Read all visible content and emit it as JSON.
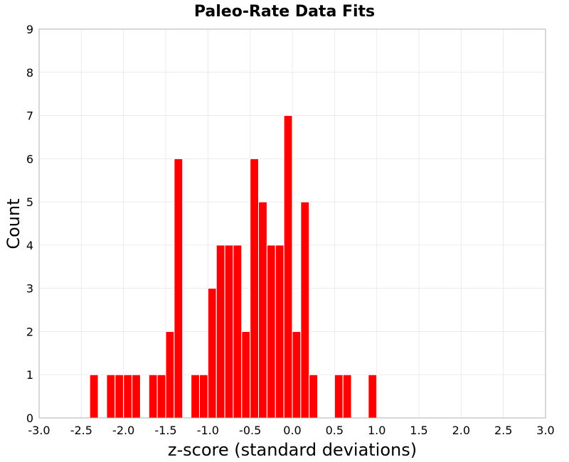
{
  "chart_data": {
    "type": "bar",
    "title": "Paleo-Rate Data Fits",
    "xlabel": "z-score (standard deviations)",
    "ylabel": "Count",
    "xlim": [
      -3.0,
      3.0
    ],
    "ylim": [
      0,
      9
    ],
    "bin_width": 0.1,
    "bar_color": "#ff0000",
    "grid": true,
    "x_ticks": [
      "-3.0",
      "-2.5",
      "-2.0",
      "-1.5",
      "-1.0",
      "-0.5",
      "0.0",
      "0.5",
      "1.0",
      "1.5",
      "2.0",
      "2.5",
      "3.0"
    ],
    "y_ticks": [
      "0",
      "1",
      "2",
      "3",
      "4",
      "5",
      "6",
      "7",
      "8",
      "9"
    ],
    "bins": [
      {
        "x": -2.35,
        "count": 1
      },
      {
        "x": -2.15,
        "count": 1
      },
      {
        "x": -2.05,
        "count": 1
      },
      {
        "x": -1.95,
        "count": 1
      },
      {
        "x": -1.85,
        "count": 1
      },
      {
        "x": -1.65,
        "count": 1
      },
      {
        "x": -1.55,
        "count": 1
      },
      {
        "x": -1.45,
        "count": 2
      },
      {
        "x": -1.35,
        "count": 6
      },
      {
        "x": -1.15,
        "count": 1
      },
      {
        "x": -1.05,
        "count": 1
      },
      {
        "x": -0.95,
        "count": 3
      },
      {
        "x": -0.85,
        "count": 4
      },
      {
        "x": -0.75,
        "count": 4
      },
      {
        "x": -0.65,
        "count": 4
      },
      {
        "x": -0.55,
        "count": 2
      },
      {
        "x": -0.45,
        "count": 6
      },
      {
        "x": -0.35,
        "count": 5
      },
      {
        "x": -0.25,
        "count": 4
      },
      {
        "x": -0.15,
        "count": 4
      },
      {
        "x": -0.05,
        "count": 7
      },
      {
        "x": 0.05,
        "count": 2
      },
      {
        "x": 0.15,
        "count": 5
      },
      {
        "x": 0.25,
        "count": 1
      },
      {
        "x": 0.55,
        "count": 1
      },
      {
        "x": 0.65,
        "count": 1
      },
      {
        "x": 0.95,
        "count": 1
      }
    ]
  }
}
